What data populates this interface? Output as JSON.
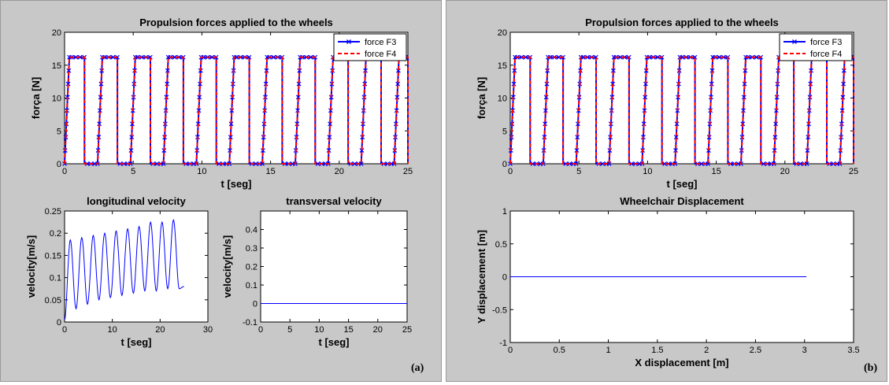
{
  "panel_labels": {
    "a": "(a)",
    "b": "(b)"
  },
  "chart_data": [
    {
      "id": "forces_a",
      "type": "line",
      "title": "Propulsion forces applied to the wheels",
      "xlabel": "t [seg]",
      "ylabel": "força [N]",
      "xlim": [
        0,
        25
      ],
      "ylim": [
        0,
        20
      ],
      "xticks": [
        0,
        5,
        10,
        15,
        20,
        25
      ],
      "yticks": [
        0,
        5,
        10,
        15,
        20
      ],
      "grid": false,
      "legend": "top-right",
      "pulse_period": 2.4,
      "pulse_amplitude": 16.2,
      "series": [
        {
          "name": "force F3",
          "color": "#0000ff",
          "marker": "x",
          "style": "solid"
        },
        {
          "name": "force F4",
          "color": "#ff0000",
          "marker": "none",
          "style": "dashed"
        }
      ]
    },
    {
      "id": "long_vel",
      "type": "line",
      "title": "longitudinal velocity",
      "xlabel": "t [seg]",
      "ylabel": "velocity[m/s]",
      "xlim": [
        0,
        30
      ],
      "ylim": [
        0,
        0.25
      ],
      "xticks": [
        0,
        10,
        20,
        30
      ],
      "yticks": [
        0,
        0.05,
        0.1,
        0.15,
        0.2,
        0.25
      ],
      "grid": false,
      "series": [
        {
          "color": "#0000ff",
          "x": [
            0,
            1.2,
            2.4,
            3.6,
            4.8,
            6.0,
            7.2,
            8.4,
            9.6,
            10.8,
            12.0,
            13.2,
            14.4,
            15.6,
            16.8,
            18.0,
            19.2,
            20.4,
            21.6,
            22.8,
            24.0,
            25.0
          ],
          "y": [
            0.005,
            0.185,
            0.03,
            0.19,
            0.04,
            0.195,
            0.05,
            0.2,
            0.055,
            0.205,
            0.06,
            0.21,
            0.065,
            0.215,
            0.07,
            0.225,
            0.07,
            0.225,
            0.075,
            0.23,
            0.075,
            0.08
          ]
        }
      ]
    },
    {
      "id": "trans_vel",
      "type": "line",
      "title": "transversal velocity",
      "xlabel": "t [seg]",
      "ylabel": "velocity[m/s]",
      "xlim": [
        0,
        25
      ],
      "ylim": [
        -0.1,
        0.5
      ],
      "xticks": [
        0,
        5,
        10,
        15,
        20,
        25
      ],
      "yticks": [
        -0.1,
        0,
        0.1,
        0.2,
        0.3,
        0.4
      ],
      "grid": false,
      "series": [
        {
          "color": "#0000ff",
          "x": [
            0,
            25
          ],
          "y": [
            0,
            0
          ]
        }
      ]
    },
    {
      "id": "forces_b",
      "type": "line",
      "title": "Propulsion forces applied to the wheels",
      "xlabel": "t [seg]",
      "ylabel": "força [N]",
      "xlim": [
        0,
        25
      ],
      "ylim": [
        0,
        20
      ],
      "xticks": [
        0,
        5,
        10,
        15,
        20,
        25
      ],
      "yticks": [
        0,
        5,
        10,
        15,
        20
      ],
      "grid": false,
      "legend": "top-right",
      "pulse_period": 2.4,
      "pulse_amplitude": 16.2,
      "series": [
        {
          "name": "force F3",
          "color": "#0000ff",
          "marker": "x",
          "style": "solid"
        },
        {
          "name": "force F4",
          "color": "#ff0000",
          "marker": "none",
          "style": "dashed"
        }
      ]
    },
    {
      "id": "displacement",
      "type": "line",
      "title": "Wheelchair Displacement",
      "xlabel": "X displacement [m]",
      "ylabel": "Y displacement [m]",
      "xlim": [
        0,
        3.5
      ],
      "ylim": [
        -1,
        1
      ],
      "xticks": [
        0,
        0.5,
        1,
        1.5,
        2,
        2.5,
        3,
        3.5
      ],
      "yticks": [
        -1,
        -0.5,
        0,
        0.5,
        1
      ],
      "grid": false,
      "series": [
        {
          "color": "#0000ff",
          "x": [
            0,
            3.02
          ],
          "y": [
            0,
            0
          ]
        }
      ]
    }
  ]
}
